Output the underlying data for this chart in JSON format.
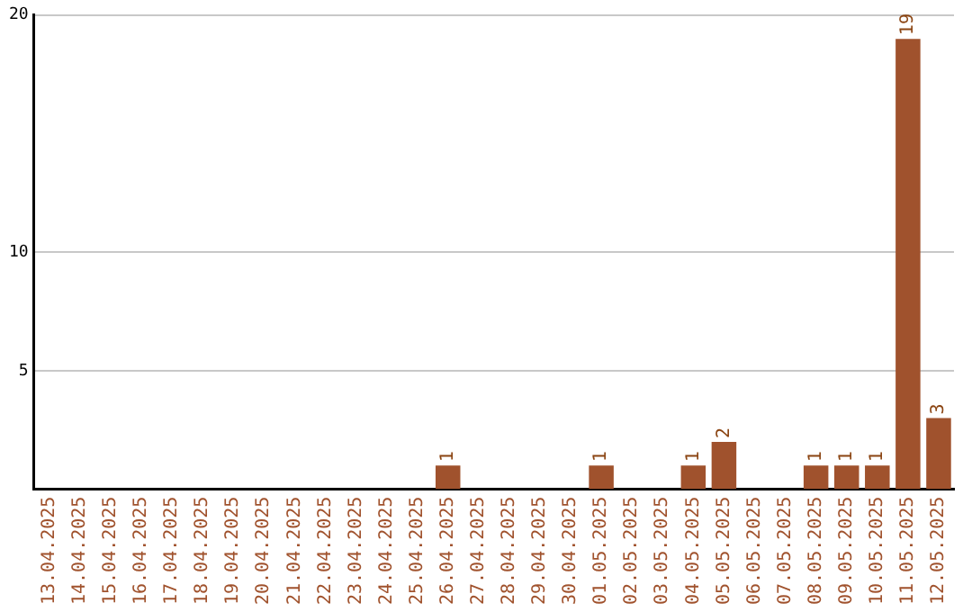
{
  "chart_data": {
    "type": "bar",
    "categories": [
      "13.04.2025",
      "14.04.2025",
      "15.04.2025",
      "16.04.2025",
      "17.04.2025",
      "18.04.2025",
      "19.04.2025",
      "20.04.2025",
      "21.04.2025",
      "22.04.2025",
      "23.04.2025",
      "24.04.2025",
      "25.04.2025",
      "26.04.2025",
      "27.04.2025",
      "28.04.2025",
      "29.04.2025",
      "30.04.2025",
      "01.05.2025",
      "02.05.2025",
      "03.05.2025",
      "04.05.2025",
      "05.05.2025",
      "06.05.2025",
      "07.05.2025",
      "08.05.2025",
      "09.05.2025",
      "10.05.2025",
      "11.05.2025",
      "12.05.2025"
    ],
    "values": [
      0,
      0,
      0,
      0,
      0,
      0,
      0,
      0,
      0,
      0,
      0,
      0,
      0,
      1,
      0,
      0,
      0,
      0,
      1,
      0,
      0,
      1,
      2,
      0,
      0,
      1,
      1,
      1,
      19,
      3
    ],
    "value_labels": [
      null,
      null,
      null,
      null,
      null,
      null,
      null,
      null,
      null,
      null,
      null,
      null,
      null,
      "1",
      null,
      null,
      null,
      null,
      "1",
      null,
      null,
      "1",
      "2",
      null,
      null,
      "1",
      "1",
      "1",
      "19",
      "3"
    ],
    "color": "#a0522d",
    "ylim": [
      0,
      20
    ],
    "yticks": [
      5,
      10,
      20
    ],
    "grid": "y",
    "legend": false
  }
}
